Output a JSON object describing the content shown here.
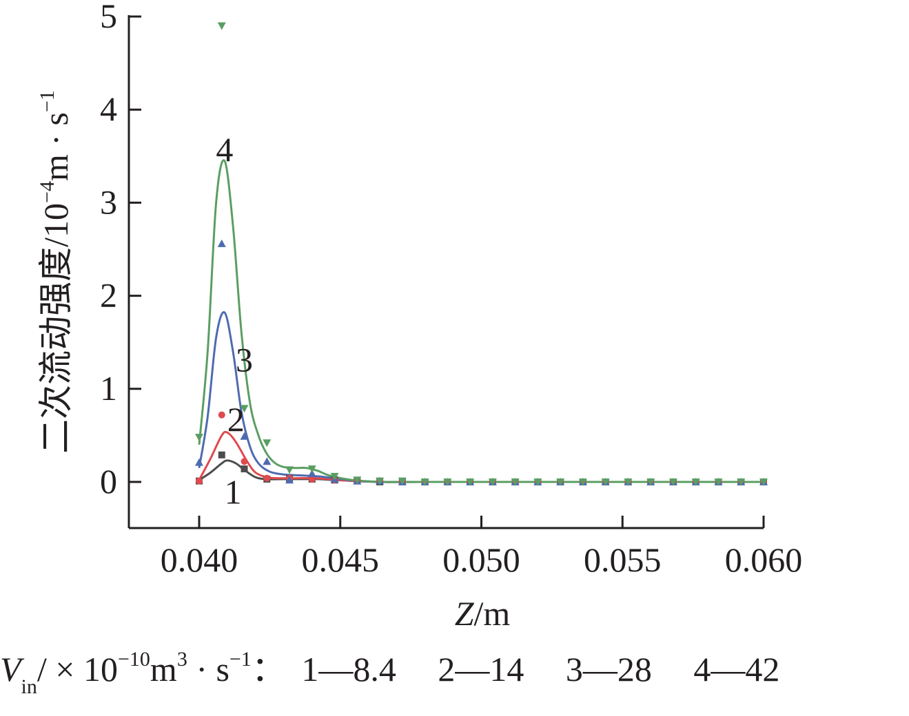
{
  "chart_data": {
    "type": "line",
    "xlabel_italic": "Z",
    "xlabel_unit": "/m",
    "ylabel": "二次流动强度/10",
    "ylabel_exp": "−4",
    "ylabel_unit": "m · s",
    "ylabel_unit_exp": "−1",
    "xlim": [
      0.0375,
      0.06
    ],
    "ylim": [
      -0.5,
      5
    ],
    "xticks": [
      "0.040",
      "0.045",
      "0.050",
      "0.055",
      "0.060"
    ],
    "xtick_values": [
      0.04,
      0.045,
      0.05,
      0.055,
      0.06
    ],
    "yticks": [
      "0",
      "1",
      "2",
      "3",
      "4",
      "5"
    ],
    "ytick_values": [
      0,
      1,
      2,
      3,
      4,
      5
    ],
    "x": [
      0.04,
      0.0408,
      0.0416,
      0.0424,
      0.0432,
      0.044,
      0.0448,
      0.0456,
      0.0464,
      0.0472,
      0.048,
      0.0488,
      0.0496,
      0.0504,
      0.0512,
      0.052,
      0.0528,
      0.0536,
      0.0544,
      0.0552,
      0.056,
      0.0568,
      0.0576,
      0.0584,
      0.0592,
      0.06
    ],
    "series": [
      {
        "name": "1",
        "color": "#4d4d4d",
        "marker": "square",
        "points": [
          0.01,
          0.29,
          0.14,
          0.03,
          0.04,
          0.03,
          0.02,
          0.01,
          0.0,
          0.0,
          0.0,
          0.0,
          0.0,
          0.0,
          0.0,
          0.0,
          0.0,
          0.0,
          0.0,
          0.0,
          0.0,
          0.0,
          0.0,
          0.0,
          0.0,
          0.0
        ],
        "fit_x": [
          0.04,
          0.0404,
          0.0408,
          0.041,
          0.0413,
          0.0416,
          0.042,
          0.0424,
          0.043,
          0.0436,
          0.0442,
          0.0448,
          0.0456,
          0.0466,
          0.048,
          0.06
        ],
        "fit_y": [
          0.02,
          0.1,
          0.2,
          0.23,
          0.2,
          0.13,
          0.05,
          0.03,
          0.03,
          0.03,
          0.03,
          0.02,
          0.01,
          0.0,
          0.0,
          0.0
        ],
        "label_x": 0.0412,
        "label_y": -0.1
      },
      {
        "name": "2",
        "color": "#e04a4f",
        "marker": "circle",
        "points": [
          0.01,
          0.72,
          0.22,
          0.04,
          0.04,
          0.03,
          0.02,
          0.01,
          0.01,
          0.0,
          0.0,
          0.0,
          0.0,
          0.0,
          0.0,
          0.0,
          0.0,
          0.0,
          0.0,
          0.0,
          0.0,
          0.0,
          0.0,
          0.0,
          0.0,
          0.0
        ],
        "fit_x": [
          0.04,
          0.0404,
          0.0408,
          0.041,
          0.0413,
          0.0417,
          0.042,
          0.0424,
          0.0428,
          0.0434,
          0.044,
          0.0446,
          0.0454,
          0.0464,
          0.048,
          0.06
        ],
        "fit_y": [
          0.02,
          0.25,
          0.5,
          0.53,
          0.43,
          0.22,
          0.1,
          0.05,
          0.04,
          0.04,
          0.04,
          0.03,
          0.01,
          0.0,
          0.0,
          0.0
        ],
        "label_x": 0.0413,
        "label_y": 0.68
      },
      {
        "name": "3",
        "color": "#4e6bb0",
        "marker": "triangle-up",
        "points": [
          0.21,
          2.56,
          0.49,
          0.22,
          0.02,
          0.09,
          0.03,
          0.01,
          0.01,
          0.0,
          0.0,
          0.0,
          0.0,
          0.0,
          0.0,
          0.0,
          0.0,
          0.0,
          0.0,
          0.0,
          0.0,
          0.0,
          0.0,
          0.0,
          0.0,
          0.0
        ],
        "fit_x": [
          0.04,
          0.0403,
          0.0406,
          0.0409,
          0.0412,
          0.0415,
          0.0418,
          0.0421,
          0.0425,
          0.043,
          0.0436,
          0.0442,
          0.0448,
          0.0456,
          0.0466,
          0.048,
          0.06
        ],
        "fit_y": [
          0.15,
          0.7,
          1.55,
          1.82,
          1.4,
          0.75,
          0.38,
          0.2,
          0.11,
          0.08,
          0.07,
          0.06,
          0.04,
          0.01,
          0.0,
          0.0,
          0.0
        ],
        "label_x": 0.0416,
        "label_y": 1.32
      },
      {
        "name": "4",
        "color": "#5a9e62",
        "marker": "triangle-down",
        "points": [
          0.48,
          4.9,
          0.79,
          0.42,
          0.13,
          0.14,
          0.06,
          0.02,
          0.01,
          0.01,
          0.0,
          0.0,
          0.0,
          0.0,
          0.0,
          0.0,
          0.0,
          0.0,
          0.0,
          0.0,
          0.0,
          0.0,
          0.0,
          0.0,
          0.0,
          0.0
        ],
        "fit_x": [
          0.04,
          0.0403,
          0.0406,
          0.0409,
          0.0412,
          0.0415,
          0.0418,
          0.0421,
          0.0424,
          0.0427,
          0.043,
          0.0434,
          0.0438,
          0.0442,
          0.0446,
          0.0452,
          0.0458,
          0.0466,
          0.048,
          0.06
        ],
        "fit_y": [
          0.4,
          1.4,
          3.0,
          3.45,
          2.75,
          1.6,
          0.85,
          0.5,
          0.3,
          0.2,
          0.16,
          0.15,
          0.15,
          0.12,
          0.07,
          0.03,
          0.01,
          0.0,
          0.0,
          0.0
        ],
        "label_x": 0.0409,
        "label_y": 3.58
      }
    ]
  },
  "legend": {
    "vin": "V",
    "vin_sub": "in",
    "unit_a": "/ × 10",
    "unit_exp1": "−10",
    "unit_b": "m",
    "unit_exp2": "3",
    "unit_c": " · s",
    "unit_exp3": "−1",
    "sep": "：",
    "entries": [
      "1—8.4",
      "2—14",
      "3—28",
      "4—42"
    ]
  }
}
